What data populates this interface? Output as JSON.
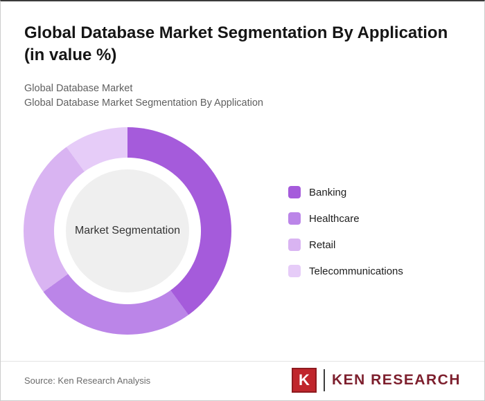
{
  "header": {
    "title": "Global Database Market Segmentation By Application (in value %)",
    "subtitle1": "Global Database Market",
    "subtitle2": "Global Database Market Segmentation By Application"
  },
  "chart_data": {
    "type": "pie",
    "donut": true,
    "title": "Global Database Market Segmentation By Application (in value %)",
    "center_label": "Market Segmentation",
    "categories": [
      "Banking",
      "Healthcare",
      "Retail",
      "Telecommunications"
    ],
    "values": [
      40,
      25,
      25,
      10
    ],
    "colors": [
      "#a55bdb",
      "#bb85e8",
      "#d9b4f2",
      "#e6ccf8"
    ],
    "legend_position": "right",
    "start_angle_deg": 0,
    "direction": "clockwise"
  },
  "footer": {
    "source": "Source: Ken Research Analysis",
    "logo": {
      "mark_letter": "K",
      "text": "KEN RESEARCH",
      "brand_red": "#c0262c",
      "brand_dark_red": "#7d1f2d"
    }
  }
}
